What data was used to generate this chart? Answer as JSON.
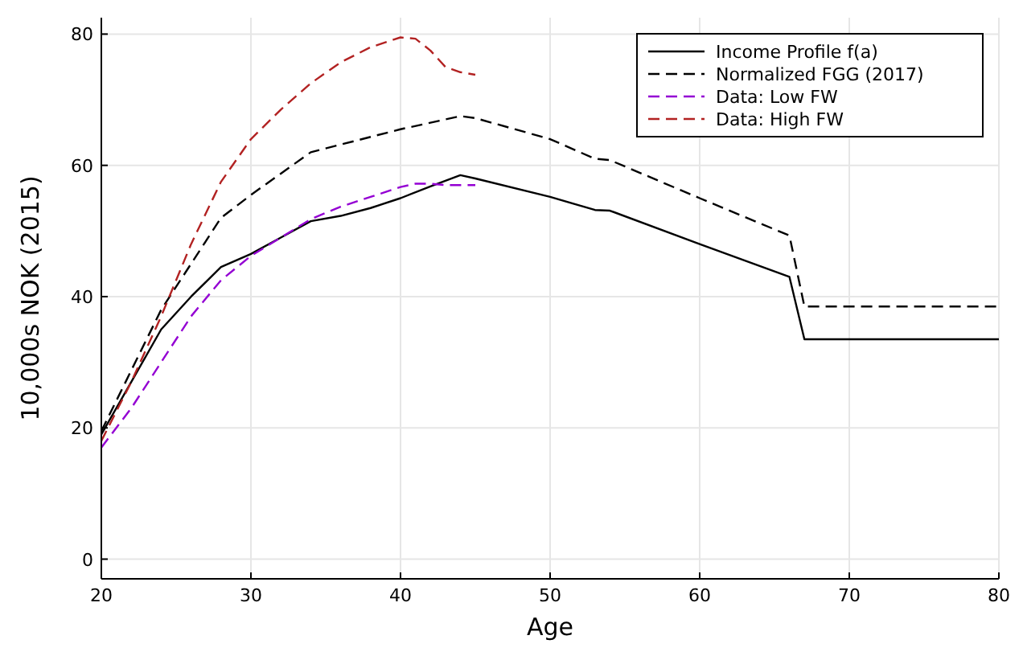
{
  "chart_data": {
    "type": "line",
    "xlabel": "Age",
    "ylabel": "10,000s NOK (2015)",
    "xlim": [
      20,
      80
    ],
    "ylim": [
      -3,
      82.5
    ],
    "xticks": [
      20,
      30,
      40,
      50,
      60,
      70,
      80
    ],
    "yticks": [
      0,
      20,
      40,
      60,
      80
    ],
    "grid": true,
    "legend": "top right",
    "series": [
      {
        "name": "Income Profile f(a)",
        "color": "#000000",
        "line_style": "solid",
        "x": [
          20,
          22,
          24,
          26,
          28,
          30,
          32,
          34,
          36,
          38,
          40,
          42,
          44,
          45,
          50,
          53,
          54,
          60,
          66,
          67,
          80
        ],
        "values": [
          19,
          27,
          35,
          40,
          44.5,
          46.5,
          49,
          51.5,
          52.3,
          53.5,
          55,
          56.8,
          58.5,
          58,
          55.2,
          53.2,
          53.1,
          48,
          43,
          33.5,
          33.5
        ]
      },
      {
        "name": "Normalized FGG (2017)",
        "color": "#000000",
        "line_style": "dashed",
        "x": [
          20,
          24,
          28,
          30,
          34,
          40,
          44,
          45,
          50,
          53,
          54,
          60,
          66,
          67,
          80
        ],
        "values": [
          19.5,
          38,
          52,
          55.5,
          62,
          65.5,
          67.5,
          67.2,
          64,
          61,
          60.8,
          55,
          49.3,
          38.5,
          38.5
        ]
      },
      {
        "name": "Data: Low FW",
        "color": "#9400d3",
        "line_style": "dashed",
        "x": [
          20,
          22,
          24,
          26,
          28,
          30,
          32,
          34,
          36,
          38,
          40,
          41,
          42,
          43,
          45
        ],
        "values": [
          17,
          23,
          30,
          37,
          42.5,
          46.2,
          49,
          51.8,
          53.7,
          55.2,
          56.7,
          57.2,
          57.2,
          57,
          57
        ]
      },
      {
        "name": "Data: High FW",
        "color": "#b22222",
        "line_style": "dashed",
        "x": [
          20,
          22,
          24,
          26,
          28,
          30,
          32,
          34,
          36,
          38,
          40,
          41,
          42,
          43,
          44,
          45
        ],
        "values": [
          18,
          27,
          37,
          48,
          57.5,
          64,
          68.5,
          72.5,
          75.7,
          78,
          79.5,
          79.3,
          77.5,
          75,
          74.2,
          73.8
        ]
      }
    ]
  }
}
